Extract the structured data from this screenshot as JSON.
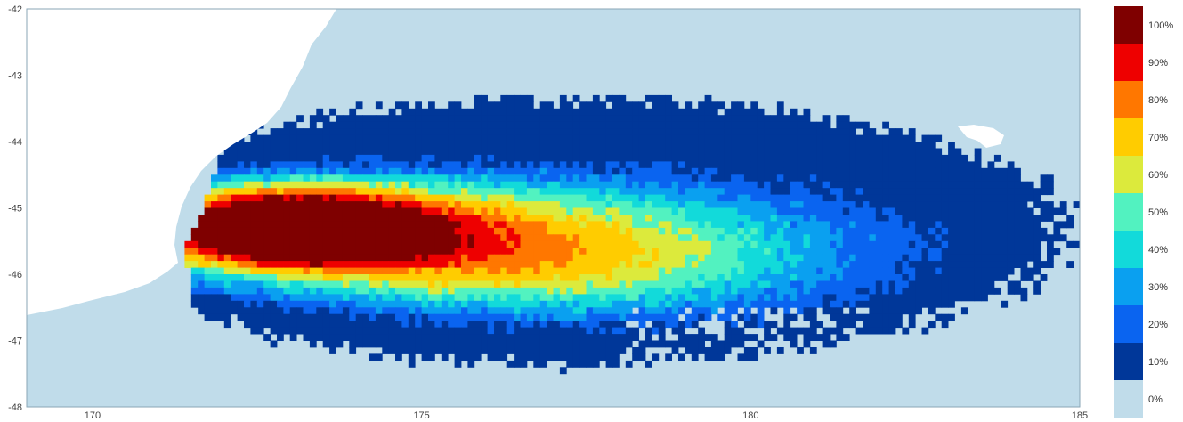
{
  "map": {
    "x_axis": {
      "min": 169,
      "max": 185,
      "ticks": [
        "170",
        "175",
        "180",
        "185"
      ]
    },
    "y_axis": {
      "min": -48,
      "max": -42,
      "ticks": [
        "-42",
        "-43",
        "-44",
        "-45",
        "-46",
        "-47",
        "-48"
      ]
    },
    "colors": {
      "ocean": "#c0dcea",
      "land": "#ffffff",
      "axis": "#8aa6b6"
    }
  },
  "legend": {
    "items": [
      {
        "label": "100%",
        "color": "#7f0000"
      },
      {
        "label": "90%",
        "color": "#ee0000"
      },
      {
        "label": "80%",
        "color": "#ff7700"
      },
      {
        "label": "70%",
        "color": "#ffcc00"
      },
      {
        "label": "60%",
        "color": "#dcea3c"
      },
      {
        "label": "50%",
        "color": "#52f2c0"
      },
      {
        "label": "40%",
        "color": "#12dada"
      },
      {
        "label": "30%",
        "color": "#0aa0f0"
      },
      {
        "label": "20%",
        "color": "#0a64f0"
      },
      {
        "label": "10%",
        "color": "#003799"
      },
      {
        "label": "0%",
        "color": "#c0dcea"
      }
    ]
  }
}
